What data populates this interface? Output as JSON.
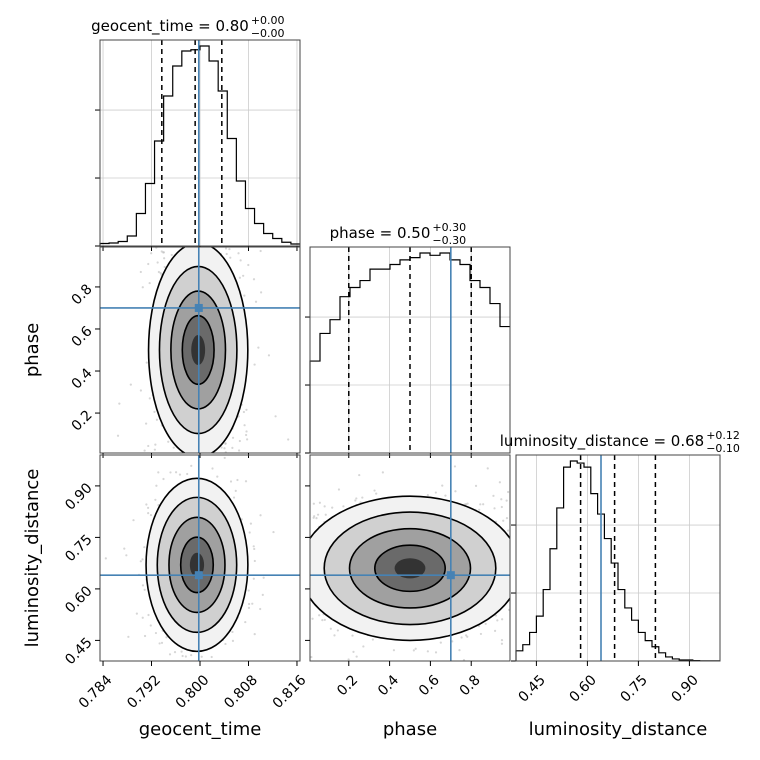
{
  "chart_data": {
    "type": "corner",
    "parameters": [
      {
        "name": "geocent_time",
        "label": "geocent_time",
        "range": [
          0.7835,
          0.8165
        ],
        "ticks": [
          0.784,
          0.792,
          0.8,
          0.808,
          0.816
        ],
        "tick_labels": [
          "0.784",
          "0.792",
          "0.800",
          "0.808",
          "0.816"
        ],
        "title_base": "geocent_time = 0.80",
        "title_plus": "+0.00",
        "title_minus": "−0.00",
        "truth": 0.7998,
        "quantiles": [
          0.7937,
          0.7992,
          0.8036
        ],
        "hist_bins_edges_start": 0.7835,
        "hist_bin_width": 0.0015,
        "hist_values": [
          1,
          1.2,
          1.8,
          4,
          13,
          25,
          42,
          60,
          72,
          78,
          78.5,
          80,
          74,
          62,
          43,
          26,
          15,
          9,
          5,
          3,
          1.5,
          0.8
        ]
      },
      {
        "name": "phase",
        "label": "phase",
        "range": [
          0.01,
          0.99
        ],
        "ticks": [
          0.2,
          0.4,
          0.6,
          0.8
        ],
        "tick_labels": [
          "0.2",
          "0.4",
          "0.6",
          "0.8"
        ],
        "title_base": "phase = 0.50",
        "title_plus": "+0.30",
        "title_minus": "−0.30",
        "truth": 0.7,
        "quantiles": [
          0.2,
          0.5,
          0.8
        ],
        "hist_bins_edges_start": 0.01,
        "hist_bin_width": 0.049,
        "hist_values": [
          40,
          52,
          58,
          68,
          72,
          75,
          80,
          80,
          82,
          84,
          85,
          87,
          86,
          87,
          84,
          82,
          75,
          72,
          65,
          55
        ]
      },
      {
        "name": "luminosity_distance",
        "label": "luminosity_distance",
        "range": [
          0.39,
          0.99
        ],
        "ticks": [
          0.45,
          0.6,
          0.75,
          0.9
        ],
        "tick_labels": [
          "0.45",
          "0.60",
          "0.75",
          "0.90"
        ],
        "title_base": "luminosity_distance = 0.68",
        "title_plus": "+0.12",
        "title_minus": "−0.10",
        "truth": 0.64,
        "quantiles": [
          0.58,
          0.68,
          0.8
        ],
        "hist_bins_edges_start": 0.39,
        "hist_bin_width": 0.02,
        "hist_values": [
          5,
          8,
          14,
          22,
          35,
          55,
          75,
          95,
          98,
          97,
          95,
          82,
          72,
          60,
          48,
          35,
          26,
          20,
          14,
          10,
          7,
          4,
          2,
          1,
          0.5,
          0.5,
          0.2,
          0.1,
          0.1,
          0.1
        ]
      }
    ],
    "pair_panels": [
      {
        "x": "geocent_time",
        "y": "phase",
        "center": [
          0.7997,
          0.5
        ],
        "spread": [
          0.0039,
          0.3
        ],
        "truth": [
          0.7998,
          0.7
        ]
      },
      {
        "x": "geocent_time",
        "y": "luminosity_distance",
        "center": [
          0.7995,
          0.67
        ],
        "spread": [
          0.004,
          0.12
        ],
        "truth": [
          0.7998,
          0.64
        ]
      },
      {
        "x": "phase",
        "y": "luminosity_distance",
        "center": [
          0.5,
          0.66
        ],
        "spread": [
          0.3,
          0.1
        ],
        "truth": [
          0.7,
          0.64
        ]
      }
    ],
    "truth_color": "#4682b4",
    "line_color": "#000000",
    "density_color": "#000000",
    "grid": true
  }
}
